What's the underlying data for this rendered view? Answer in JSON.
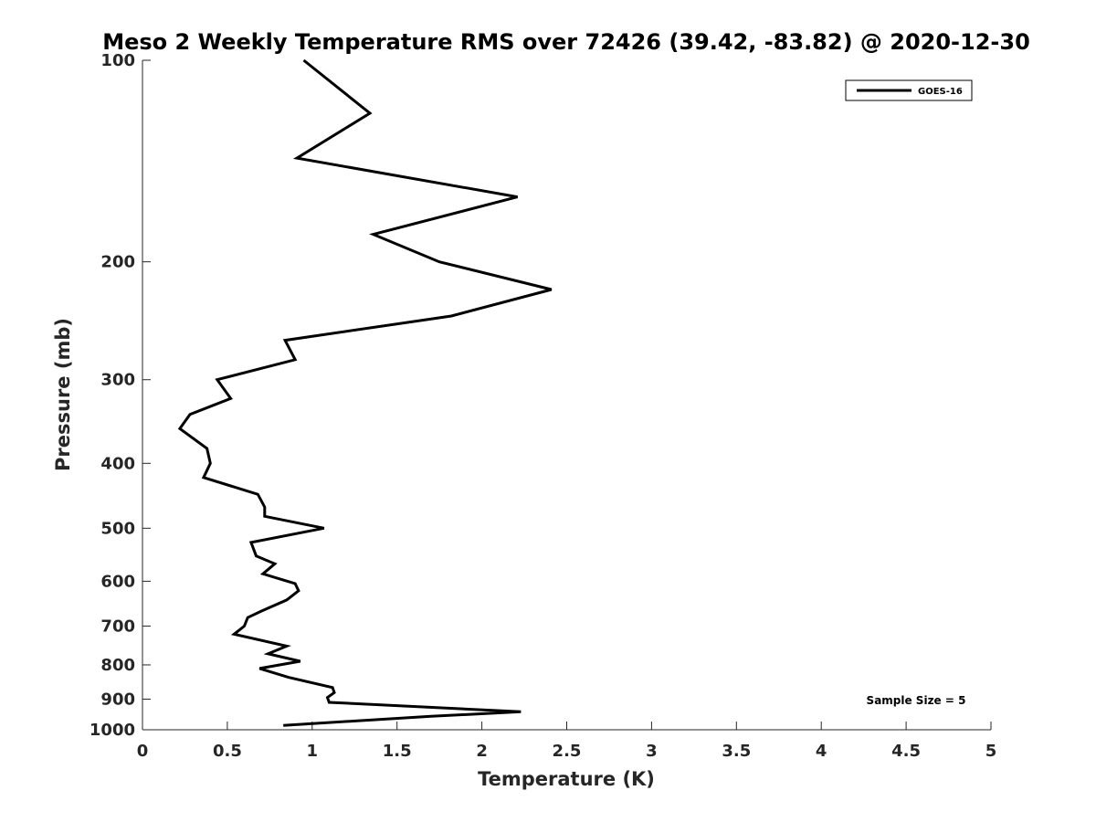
{
  "chart_data": {
    "type": "line",
    "title": "Meso 2 Weekly Temperature RMS over 72426 (39.42, -83.82) @ 2020-12-30",
    "xlabel": "Temperature (K)",
    "ylabel": "Pressure (mb)",
    "xlim": [
      0,
      5
    ],
    "ylim": [
      100,
      1000
    ],
    "y_scale": "log",
    "y_reversed": true,
    "x_ticks": [
      "0",
      "0.5",
      "1",
      "1.5",
      "2",
      "2.5",
      "3",
      "3.5",
      "4",
      "4.5",
      "5"
    ],
    "y_ticks": [
      "100",
      "200",
      "300",
      "400",
      "500",
      "600",
      "700",
      "800",
      "900",
      "1000"
    ],
    "grid": false,
    "legend_position": "top-right",
    "annotation": "Sample Size = 5",
    "series": [
      {
        "name": "GOES-16",
        "color": "#000000",
        "x": [
          0.95,
          1.34,
          0.91,
          2.21,
          1.36,
          1.75,
          2.41,
          1.82,
          0.84,
          0.9,
          0.44,
          0.52,
          0.28,
          0.22,
          0.38,
          0.4,
          0.36,
          0.68,
          0.72,
          0.72,
          1.07,
          0.64,
          0.67,
          0.78,
          0.71,
          0.9,
          0.92,
          0.85,
          0.7,
          0.62,
          0.6,
          0.54,
          0.85,
          0.74,
          0.93,
          0.69,
          0.86,
          1.12,
          1.13,
          1.09,
          1.1,
          2.23,
          1.7,
          0.83
        ],
        "y": [
          100,
          120,
          140,
          160,
          182,
          200,
          220,
          241,
          262,
          280,
          300,
          320,
          338,
          355,
          380,
          400,
          420,
          445,
          465,
          480,
          500,
          525,
          550,
          565,
          585,
          605,
          620,
          640,
          665,
          680,
          700,
          720,
          750,
          770,
          790,
          810,
          835,
          865,
          880,
          895,
          910,
          940,
          955,
          985
        ]
      }
    ]
  }
}
